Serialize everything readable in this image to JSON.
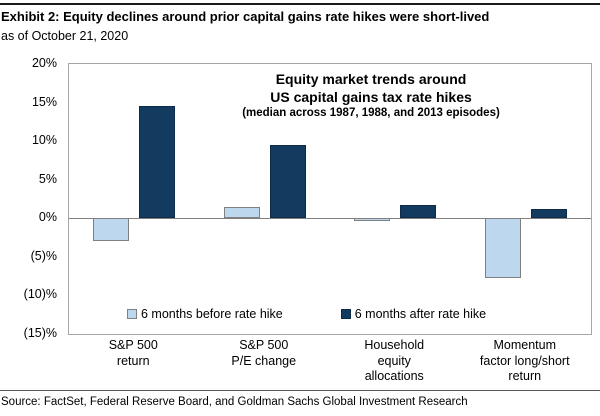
{
  "header": {
    "title": "Exhibit 2: Equity declines around prior capital gains rate hikes were short-lived",
    "subtitle": "as of October 21, 2020"
  },
  "footer": {
    "source": "Source: FactSet, Federal Reserve Board, and Goldman Sachs Global Investment Research"
  },
  "chart_data": {
    "type": "bar",
    "title_lines": [
      "Equity market trends around",
      "US capital gains tax rate hikes"
    ],
    "subtitle": "(median across 1987, 1988, and 2013 episodes)",
    "categories": [
      [
        "S&P 500",
        "return"
      ],
      [
        "S&P 500",
        "P/E change"
      ],
      [
        "Household",
        "equity",
        "allocations"
      ],
      [
        "Momentum",
        "factor long/short",
        "return"
      ]
    ],
    "series": [
      {
        "name": "6 months before rate hike",
        "color": "#BDD7EE",
        "border": "#808080",
        "values": [
          -3.0,
          1.4,
          -0.4,
          -7.7
        ]
      },
      {
        "name": "6 months after rate hike",
        "color": "#133A5F",
        "border": "#0E2C49",
        "values": [
          14.5,
          9.5,
          1.7,
          1.2
        ]
      }
    ],
    "y_axis": {
      "ticks": [
        "20%",
        "15%",
        "10%",
        "5%",
        "0%",
        "(5)%",
        "(10)%",
        "(15)%"
      ],
      "values": [
        20,
        15,
        10,
        5,
        0,
        -5,
        -10,
        -15
      ],
      "max": 20,
      "min": -15
    },
    "grid": false,
    "legend_position": "bottom-inside",
    "unit": "percent"
  }
}
